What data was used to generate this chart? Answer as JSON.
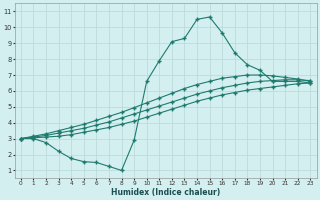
{
  "xlabel": "Humidex (Indice chaleur)",
  "background_color": "#d4efef",
  "grid_color": "#b8d8d8",
  "line_color": "#1e7a6e",
  "xlim": [
    -0.5,
    23.5
  ],
  "ylim": [
    0.5,
    11.5
  ],
  "xticks": [
    0,
    1,
    2,
    3,
    4,
    5,
    6,
    7,
    8,
    9,
    10,
    11,
    12,
    13,
    14,
    15,
    16,
    17,
    18,
    19,
    20,
    21,
    22,
    23
  ],
  "yticks": [
    1,
    2,
    3,
    4,
    5,
    6,
    7,
    8,
    9,
    10,
    11
  ],
  "line1_x": [
    0,
    1,
    2,
    3,
    4,
    5,
    6,
    7,
    8,
    9,
    10,
    11,
    12,
    13,
    14,
    15,
    16,
    17,
    18,
    19,
    20,
    21,
    22,
    23
  ],
  "line1_y": [
    3.0,
    3.05,
    3.1,
    3.15,
    3.25,
    3.4,
    3.55,
    3.7,
    3.9,
    4.1,
    4.35,
    4.6,
    4.85,
    5.1,
    5.35,
    5.55,
    5.75,
    5.9,
    6.05,
    6.15,
    6.25,
    6.35,
    6.45,
    6.5
  ],
  "line2_x": [
    0,
    1,
    2,
    3,
    4,
    5,
    6,
    7,
    8,
    9,
    10,
    11,
    12,
    13,
    14,
    15,
    16,
    17,
    18,
    19,
    20,
    21,
    22,
    23
  ],
  "line2_y": [
    3.0,
    3.1,
    3.2,
    3.35,
    3.5,
    3.65,
    3.85,
    4.05,
    4.3,
    4.55,
    4.8,
    5.05,
    5.3,
    5.55,
    5.8,
    6.0,
    6.2,
    6.35,
    6.5,
    6.6,
    6.65,
    6.7,
    6.7,
    6.65
  ],
  "line3_x": [
    0,
    1,
    2,
    3,
    4,
    5,
    6,
    7,
    8,
    9,
    10,
    11,
    12,
    13,
    14,
    15,
    16,
    17,
    18,
    19,
    20,
    21,
    22,
    23
  ],
  "line3_y": [
    3.0,
    3.15,
    3.3,
    3.5,
    3.7,
    3.9,
    4.15,
    4.4,
    4.65,
    4.95,
    5.25,
    5.55,
    5.85,
    6.15,
    6.4,
    6.6,
    6.8,
    6.9,
    7.0,
    7.0,
    6.95,
    6.85,
    6.75,
    6.6
  ],
  "peak_x": [
    0,
    1,
    2,
    3,
    4,
    5,
    6,
    7,
    8,
    9,
    10,
    11,
    12,
    13,
    14,
    15,
    16,
    17,
    18,
    19,
    20,
    21,
    22,
    23
  ],
  "peak_y": [
    3.0,
    3.0,
    2.75,
    2.2,
    1.75,
    1.55,
    1.5,
    1.25,
    1.0,
    2.9,
    6.6,
    7.9,
    9.1,
    9.3,
    10.5,
    10.65,
    9.65,
    8.4,
    7.65,
    7.3,
    6.6,
    6.6,
    6.6,
    6.5
  ]
}
